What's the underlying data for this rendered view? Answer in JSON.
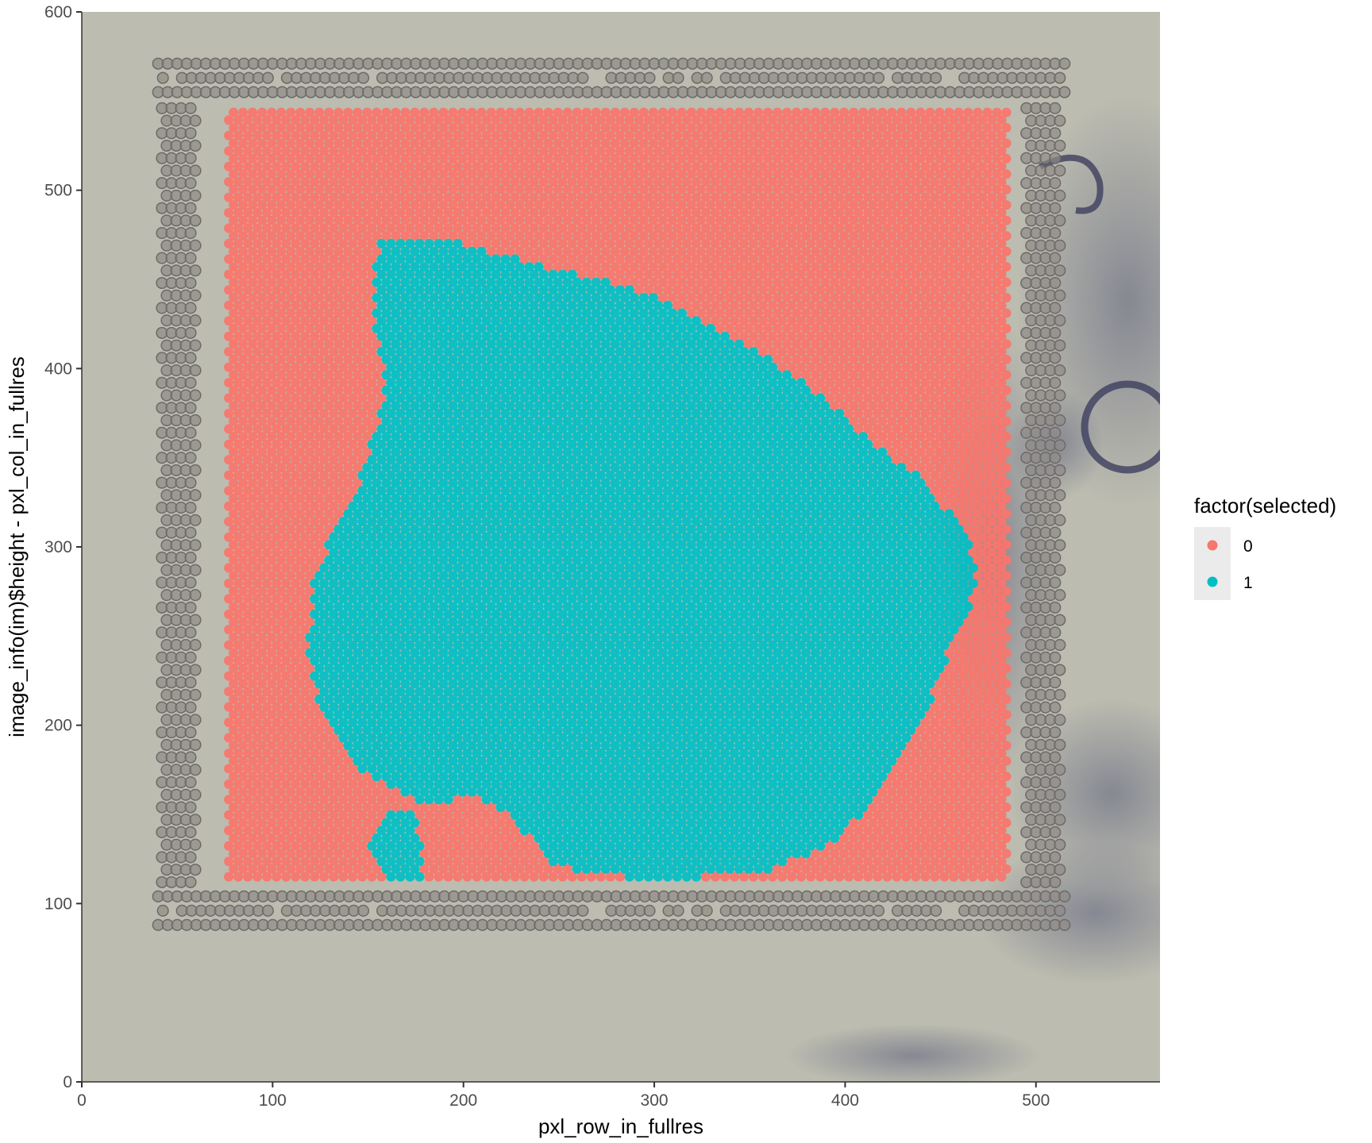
{
  "chart_data": {
    "type": "scatter",
    "xlabel": "pxl_row_in_fullres",
    "ylabel": "image_info(im)$height - pxl_col_in_fullres",
    "xlim": [
      0,
      565
    ],
    "ylim": [
      0,
      600
    ],
    "x_ticks": [
      "0",
      "100",
      "200",
      "300",
      "400",
      "500"
    ],
    "y_ticks": [
      "0",
      "100",
      "200",
      "300",
      "400",
      "500",
      "600"
    ],
    "x_tick_values": [
      0,
      100,
      200,
      300,
      400,
      500
    ],
    "y_tick_values": [
      0,
      100,
      200,
      300,
      400,
      500,
      600
    ],
    "background": "tissue-image",
    "legend": {
      "title": "factor(selected)",
      "placement": "right",
      "entries": [
        {
          "label": "0",
          "color": "#F8766D"
        },
        {
          "label": "1",
          "color": "#00BFC4"
        }
      ]
    },
    "spot_grid": {
      "x_range": [
        77,
        485
      ],
      "y_range": [
        115,
        546
      ],
      "spacing": 5
    },
    "selected_region_outline": [
      [
        155,
        470
      ],
      [
        190,
        473
      ],
      [
        215,
        465
      ],
      [
        250,
        455
      ],
      [
        290,
        445
      ],
      [
        320,
        430
      ],
      [
        350,
        412
      ],
      [
        380,
        392
      ],
      [
        410,
        362
      ],
      [
        440,
        338
      ],
      [
        460,
        312
      ],
      [
        470,
        290
      ],
      [
        465,
        262
      ],
      [
        450,
        232
      ],
      [
        440,
        200
      ],
      [
        420,
        165
      ],
      [
        395,
        135
      ],
      [
        360,
        118
      ],
      [
        300,
        113
      ],
      [
        250,
        120
      ],
      [
        225,
        148
      ],
      [
        205,
        160
      ],
      [
        180,
        155
      ],
      [
        160,
        150
      ],
      [
        150,
        132
      ],
      [
        160,
        110
      ],
      [
        180,
        112
      ],
      [
        175,
        158
      ],
      [
        140,
        180
      ],
      [
        125,
        205
      ],
      [
        118,
        240
      ],
      [
        122,
        280
      ],
      [
        132,
        310
      ],
      [
        145,
        335
      ],
      [
        160,
        390
      ],
      [
        152,
        430
      ],
      [
        155,
        470
      ]
    ],
    "series": [
      {
        "name": "0",
        "color": "#F8766D",
        "description_of_points": "all spots inside array but outside tissue"
      },
      {
        "name": "1",
        "color": "#00BFC4",
        "description_of_points": "spots over tissue region"
      }
    ]
  }
}
